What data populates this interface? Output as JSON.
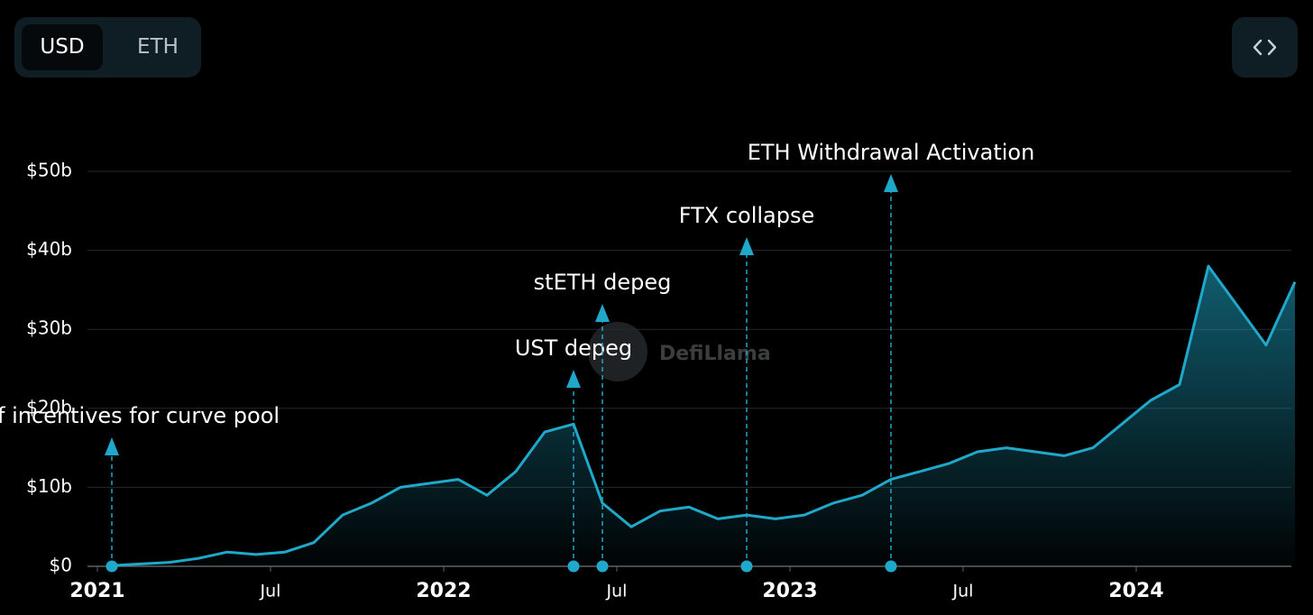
{
  "toggle": {
    "options": [
      "USD",
      "ETH"
    ],
    "active_index": 0
  },
  "watermark": "DefiLlama",
  "chart_data": {
    "type": "area",
    "color": "#1fa8c9",
    "x": [
      "2021-01",
      "2021-02",
      "2021-03",
      "2021-04",
      "2021-05",
      "2021-06",
      "2021-07",
      "2021-08",
      "2021-09",
      "2021-10",
      "2021-11",
      "2021-12",
      "2022-01",
      "2022-02",
      "2022-03",
      "2022-04",
      "2022-05",
      "2022-06",
      "2022-07",
      "2022-08",
      "2022-09",
      "2022-10",
      "2022-11",
      "2022-12",
      "2023-01",
      "2023-02",
      "2023-03",
      "2023-04",
      "2023-05",
      "2023-06",
      "2023-07",
      "2023-08",
      "2023-09",
      "2023-10",
      "2023-11",
      "2023-12",
      "2024-01",
      "2024-02",
      "2024-03",
      "2024-04",
      "2024-05",
      "2024-06"
    ],
    "values": [
      0.1,
      0.3,
      0.5,
      1,
      1.8,
      1.5,
      1.8,
      3,
      6.5,
      8,
      10,
      10.5,
      11,
      9,
      12,
      17,
      18,
      8,
      5,
      7,
      7.5,
      6,
      6.5,
      6,
      6.5,
      8,
      9,
      11,
      12,
      13,
      14.5,
      15,
      14.5,
      14,
      15,
      18,
      21,
      23,
      38,
      33,
      28,
      36
    ],
    "xlim": [
      "2021-01",
      "2024-06"
    ],
    "xticks": [
      {
        "value": "2021-01",
        "label": "2021"
      },
      {
        "value": "2021-07",
        "label": "Jul"
      },
      {
        "value": "2022-01",
        "label": "2022"
      },
      {
        "value": "2022-07",
        "label": "Jul"
      },
      {
        "value": "2023-01",
        "label": "2023"
      },
      {
        "value": "2023-07",
        "label": "Jul"
      },
      {
        "value": "2024-01",
        "label": "2024"
      }
    ],
    "ylim": [
      0,
      50
    ],
    "yticks": [
      {
        "value": 0,
        "label": "$0"
      },
      {
        "value": 10,
        "label": "$10b"
      },
      {
        "value": 20,
        "label": "$20b"
      },
      {
        "value": 30,
        "label": "$30b"
      },
      {
        "value": 40,
        "label": "$40b"
      },
      {
        "value": 50,
        "label": "$50b"
      }
    ],
    "grid": true,
    "events": [
      {
        "label": "f incentives for curve pool",
        "x": "2021-01"
      },
      {
        "label": "UST depeg",
        "x": "2022-05"
      },
      {
        "label": "stETH depeg",
        "x": "2022-06"
      },
      {
        "label": "FTX collapse",
        "x": "2022-11"
      },
      {
        "label": "ETH Withdrawal Activation",
        "x": "2023-04"
      }
    ]
  }
}
